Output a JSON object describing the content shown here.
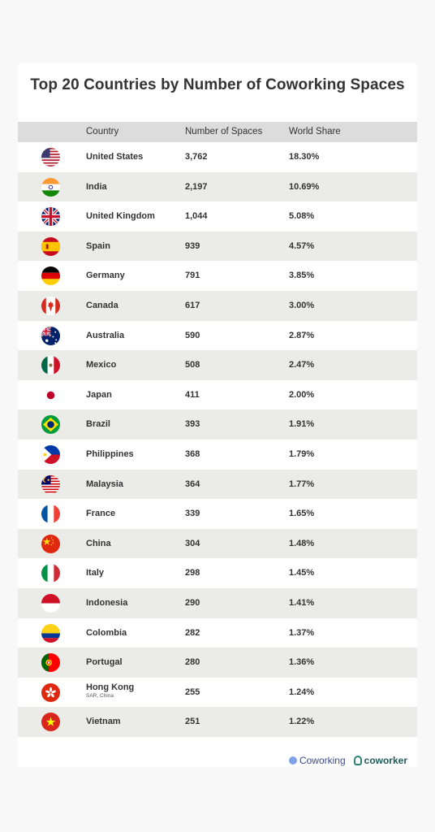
{
  "chart_data": {
    "type": "table",
    "title": "Top 20 Countries by Number of Coworking Spaces",
    "columns": [
      "Country",
      "Number of Spaces",
      "World Share"
    ],
    "rows": [
      {
        "flag": "usa",
        "country": "United States",
        "spaces": "3,762",
        "share": "18.30%"
      },
      {
        "flag": "india",
        "country": "India",
        "spaces": "2,197",
        "share": "10.69%"
      },
      {
        "flag": "uk",
        "country": "United Kingdom",
        "spaces": "1,044",
        "share": "5.08%"
      },
      {
        "flag": "spain",
        "country": "Spain",
        "spaces": "939",
        "share": "4.57%"
      },
      {
        "flag": "germany",
        "country": "Germany",
        "spaces": "791",
        "share": "3.85%"
      },
      {
        "flag": "canada",
        "country": "Canada",
        "spaces": "617",
        "share": "3.00%"
      },
      {
        "flag": "australia",
        "country": "Australia",
        "spaces": "590",
        "share": "2.87%"
      },
      {
        "flag": "mexico",
        "country": "Mexico",
        "spaces": "508",
        "share": "2.47%"
      },
      {
        "flag": "japan",
        "country": "Japan",
        "spaces": "411",
        "share": "2.00%"
      },
      {
        "flag": "brazil",
        "country": "Brazil",
        "spaces": "393",
        "share": "1.91%"
      },
      {
        "flag": "philippines",
        "country": "Philippines",
        "spaces": "368",
        "share": "1.79%"
      },
      {
        "flag": "malaysia",
        "country": "Malaysia",
        "spaces": "364",
        "share": "1.77%"
      },
      {
        "flag": "france",
        "country": "France",
        "spaces": "339",
        "share": "1.65%"
      },
      {
        "flag": "china",
        "country": "China",
        "spaces": "304",
        "share": "1.48%"
      },
      {
        "flag": "italy",
        "country": "Italy",
        "spaces": "298",
        "share": "1.45%"
      },
      {
        "flag": "indonesia",
        "country": "Indonesia",
        "spaces": "290",
        "share": "1.41%"
      },
      {
        "flag": "colombia",
        "country": "Colombia",
        "spaces": "282",
        "share": "1.37%"
      },
      {
        "flag": "portugal",
        "country": "Portugal",
        "spaces": "280",
        "share": "1.36%"
      },
      {
        "flag": "hongkong",
        "country": "Hong Kong",
        "subtext": "SAR, China",
        "spaces": "255",
        "share": "1.24%"
      },
      {
        "flag": "vietnam",
        "country": "Vietnam",
        "spaces": "251",
        "share": "1.22%"
      }
    ]
  },
  "logos": {
    "coworking_resources": "Coworking",
    "coworker": "coworker"
  },
  "colors": {
    "header_bg": "#dcdcdc",
    "stripe_bg": "#ebebe7",
    "text": "#333333"
  }
}
